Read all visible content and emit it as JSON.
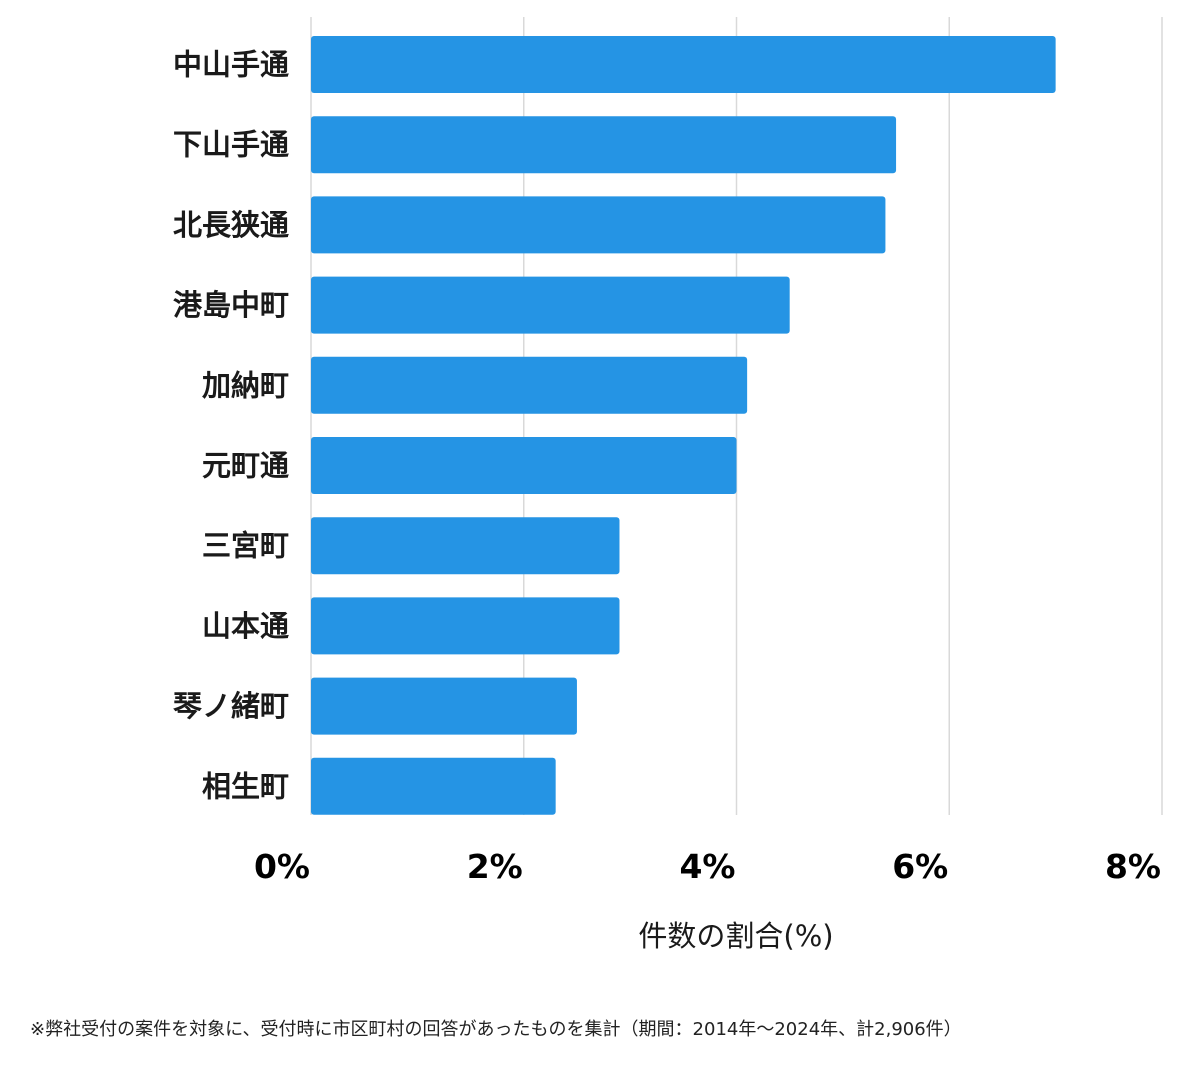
{
  "chart_data": {
    "type": "bar",
    "orientation": "horizontal",
    "categories": [
      "中山手通",
      "下山手通",
      "北長狭通",
      "港島中町",
      "加納町",
      "元町通",
      "三宮町",
      "山本通",
      "琴ノ緒町",
      "相生町"
    ],
    "values": [
      7.0,
      5.5,
      5.4,
      4.5,
      4.1,
      4.0,
      2.9,
      2.9,
      2.5,
      2.3
    ],
    "xlabel": "件数の割合(%)",
    "xlim": [
      0,
      8
    ],
    "xticks": [
      0,
      2,
      4,
      6,
      8
    ],
    "xtick_labels": [
      "0%",
      "2%",
      "4%",
      "6%",
      "8%"
    ],
    "grid": true,
    "bar_color": "#2594e4",
    "grid_color": "#d9d9d9"
  },
  "footnote": "※弊社受付の案件を対象に、受付時に市区町村の回答があったものを集計（期間：2014年〜2024年、計2,906件）"
}
